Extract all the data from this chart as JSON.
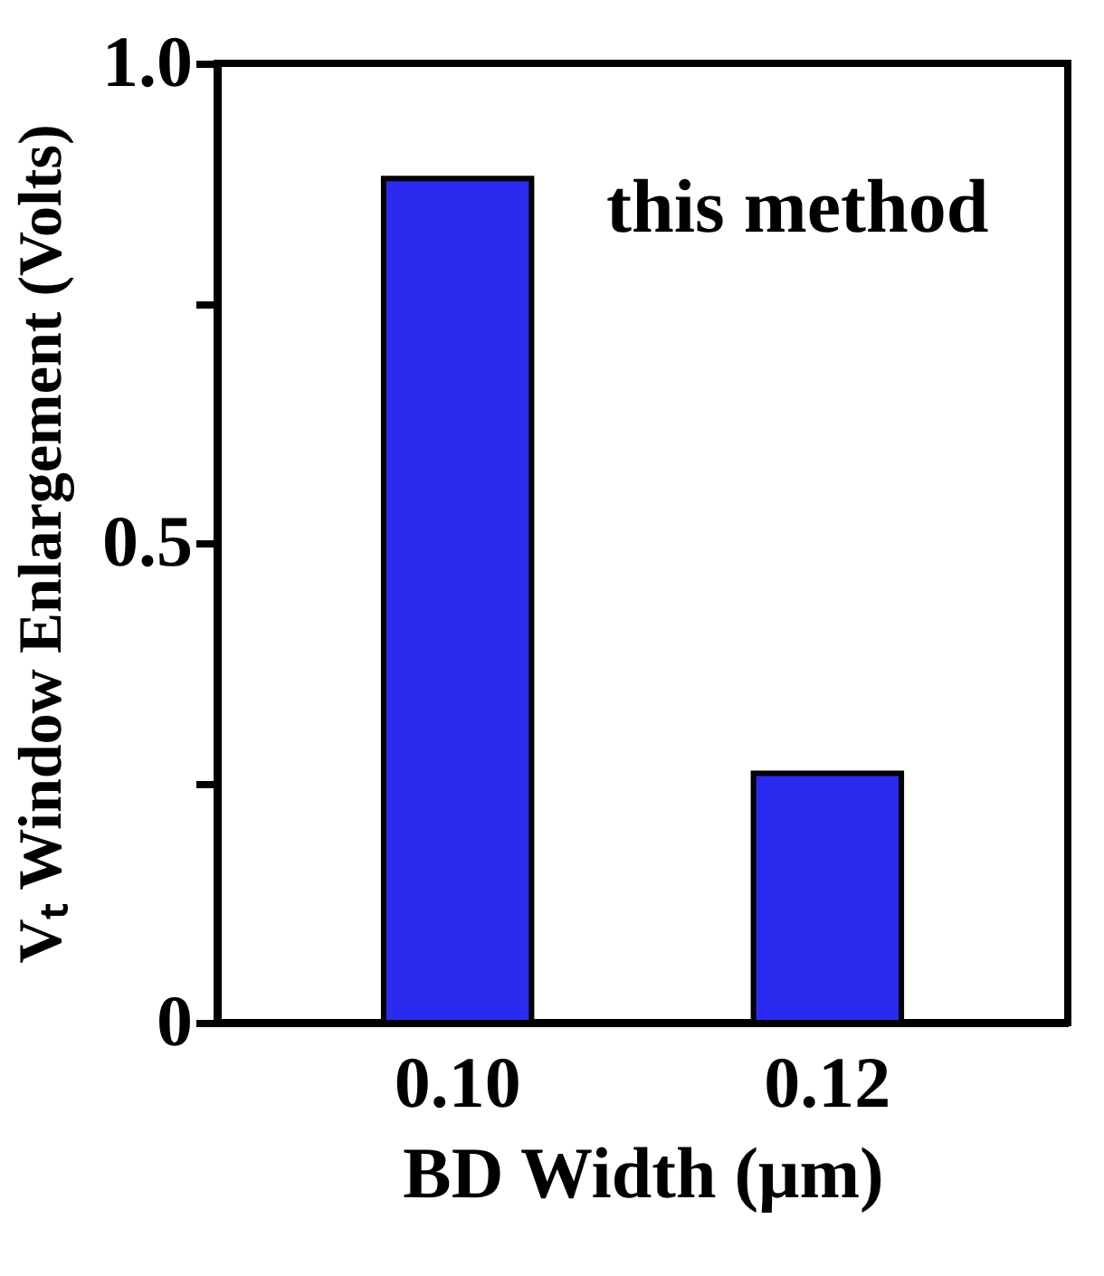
{
  "chart_data": {
    "type": "bar",
    "xlabel": "BD Width (μm)",
    "ylabel": "Vₜ Window Enlargement (Volts)",
    "categories": [
      "0.10",
      "0.12"
    ],
    "values": [
      0.88,
      0.26
    ],
    "color": "#2b2bef",
    "ylim": [
      0,
      1
    ],
    "yticks": [
      {
        "value": 0,
        "label": "0"
      },
      {
        "value": 0.25,
        "label": null
      },
      0.5,
      {
        "value": 0.75,
        "label": null
      },
      {
        "value": 1,
        "label": "1.0"
      }
    ],
    "annotations": [
      "this method"
    ],
    "grid": false
  }
}
